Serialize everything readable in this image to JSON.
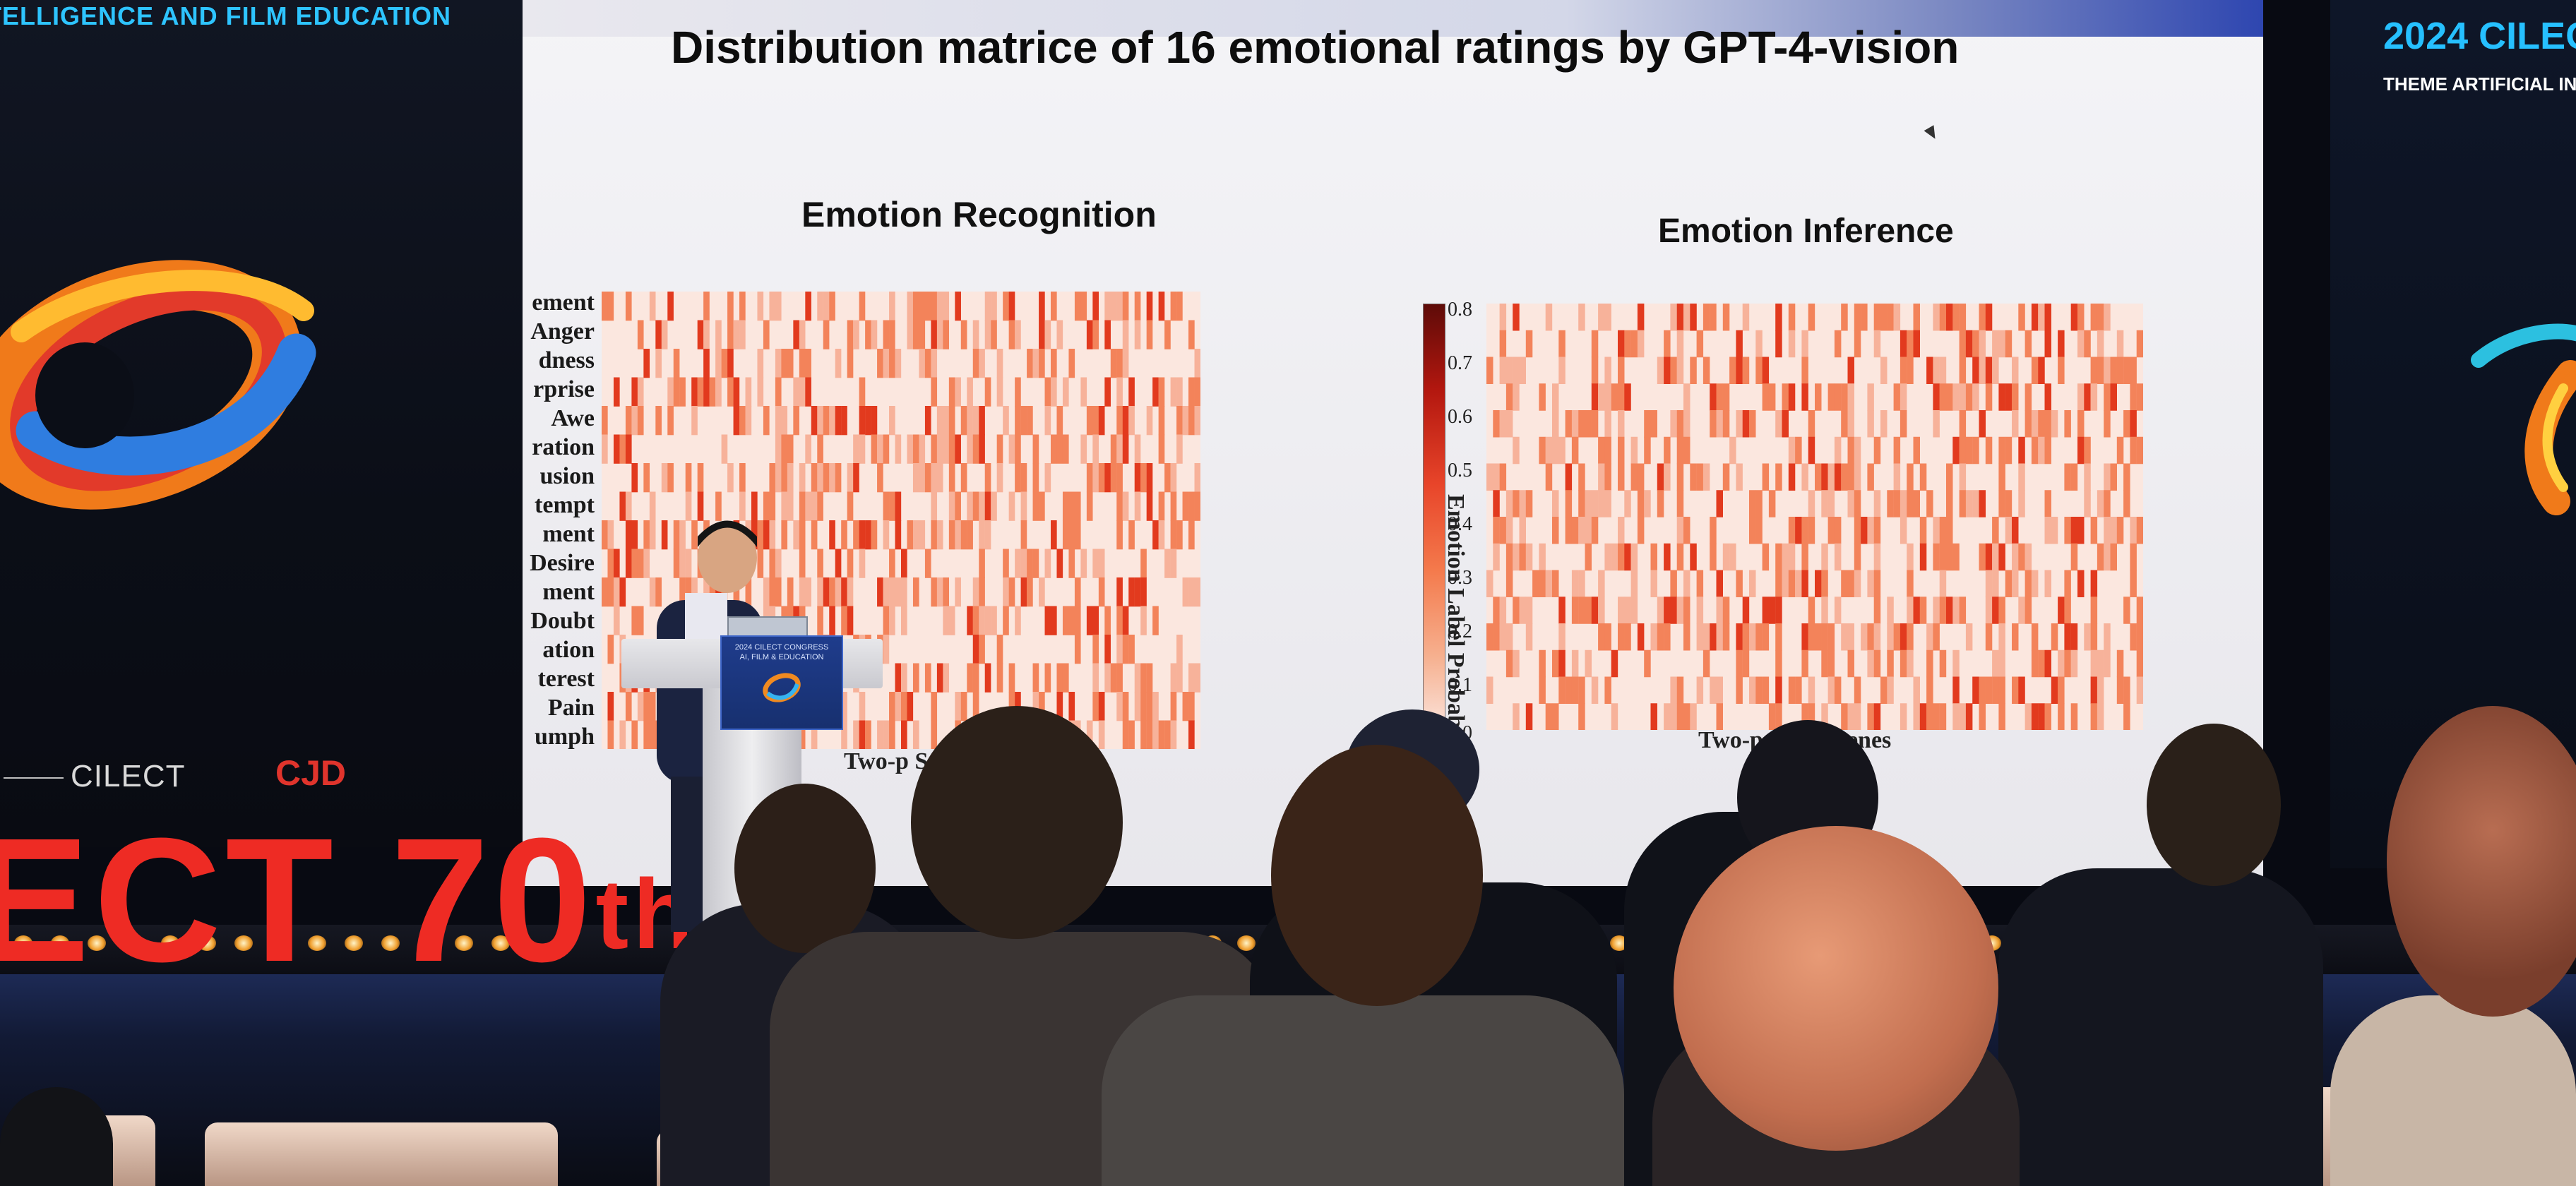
{
  "banners": {
    "left_heading": "TELLIGENCE AND FILM EDUCATION",
    "left_wordmark": "CILECT",
    "left_logo_text": "CJD",
    "right_year": "2024 CILEC",
    "right_theme": "THEME ARTIFICIAL INTELLI",
    "congress_red_text": "ECT 70",
    "congress_red_suffix": "th"
  },
  "slide": {
    "title": "Distribution matrice of 16 emotional ratings by GPT-4-vision",
    "panel_left_title": "Emotion Recognition",
    "panel_right_title": "Emotion Inference",
    "y_labels": [
      "ement",
      "Anger",
      "dness",
      "rprise",
      "Awe",
      "ration",
      "usion",
      "tempt",
      "ment",
      "Desire",
      "ment",
      "Doubt",
      "ation",
      "terest",
      "Pain",
      "umph"
    ],
    "colorbar_ticks": [
      "0.8",
      "0.7",
      "0.6",
      "0.5",
      "0.4",
      "0.3",
      "0.2",
      "0.1",
      "0.0"
    ],
    "colorbar_title": "Emotion Label Probability",
    "x_label_left": "Two-p                         Scenes",
    "x_label_right": "Two-p                     ogue Scenes"
  },
  "podium": {
    "sign_lines": [
      "2024 CILECT CONGRESS",
      "AI, FILM & EDUCATION"
    ]
  },
  "colors": {
    "heat_low": "#fbe7df",
    "heat_mid": "#f3835a",
    "heat_high": "#e23a1e",
    "banner_cyan": "#2ec4ff",
    "congress_red": "#ee2b24"
  }
}
